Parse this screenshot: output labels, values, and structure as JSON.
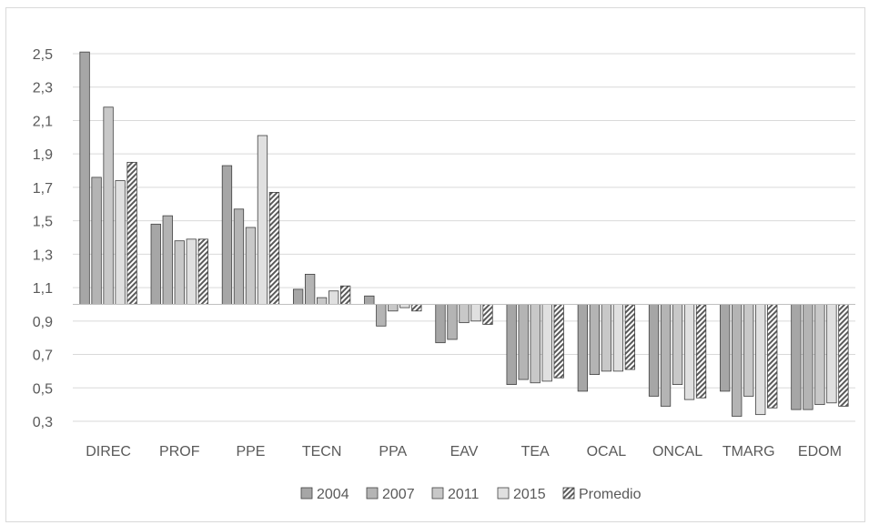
{
  "chart_data": {
    "type": "bar",
    "baseline": 1.0,
    "ylim": [
      0.3,
      2.5
    ],
    "yticks": [
      "2,5",
      "2,3",
      "2,1",
      "1,9",
      "1,7",
      "1,5",
      "1,3",
      "1,1",
      "0,9",
      "0,7",
      "0,5",
      "0,3"
    ],
    "ytick_values": [
      2.5,
      2.3,
      2.1,
      1.9,
      1.7,
      1.5,
      1.3,
      1.1,
      0.9,
      0.7,
      0.5,
      0.3
    ],
    "grid": true,
    "legend_position": "bottom",
    "categories": [
      "DIREC",
      "PROF",
      "PPE",
      "TECN",
      "PPA",
      "EAV",
      "TEA",
      "OCAL",
      "ONCAL",
      "TMARG",
      "EDOM"
    ],
    "series": [
      {
        "name": "2004",
        "color": "#a6a6a6",
        "pattern": "solid",
        "values": [
          2.51,
          1.48,
          1.83,
          1.09,
          1.05,
          0.77,
          0.52,
          0.48,
          0.45,
          0.48,
          0.37
        ]
      },
      {
        "name": "2007",
        "color": "#b4b4b4",
        "pattern": "solid",
        "values": [
          1.76,
          1.53,
          1.57,
          1.18,
          0.87,
          0.79,
          0.55,
          0.58,
          0.39,
          0.33,
          0.37
        ]
      },
      {
        "name": "2011",
        "color": "#c8c8c8",
        "pattern": "solid",
        "values": [
          2.18,
          1.38,
          1.46,
          1.04,
          0.96,
          0.89,
          0.53,
          0.6,
          0.52,
          0.45,
          0.4
        ]
      },
      {
        "name": "2015",
        "color": "#e0e0e0",
        "pattern": "solid",
        "values": [
          1.74,
          1.39,
          2.01,
          1.08,
          0.98,
          0.9,
          0.54,
          0.6,
          0.43,
          0.34,
          0.41
        ]
      },
      {
        "name": "Promedio",
        "color": "#5a5a5a",
        "pattern": "hatch",
        "values": [
          1.85,
          1.39,
          1.67,
          1.11,
          0.96,
          0.88,
          0.56,
          0.61,
          0.44,
          0.38,
          0.39
        ]
      }
    ]
  }
}
